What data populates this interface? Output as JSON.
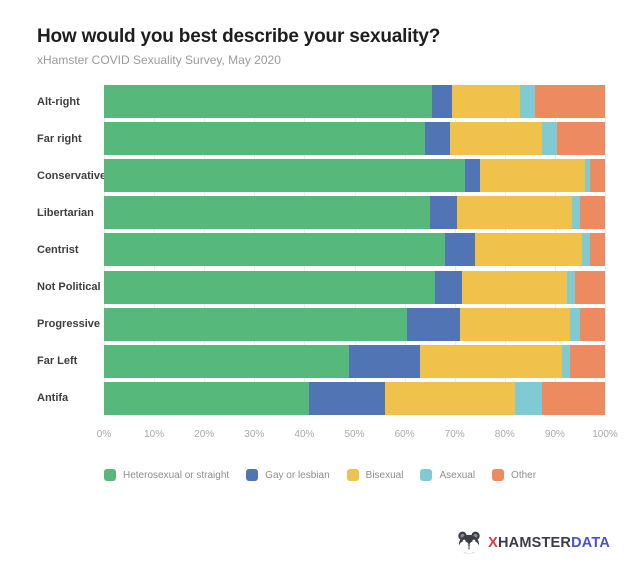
{
  "header": {
    "title": "How would you best describe your sexuality?",
    "subtitle": "xHamster COVID Sexuality Survey, May 2020"
  },
  "chart_data": {
    "type": "bar",
    "orientation": "horizontal",
    "stacked": true,
    "title": "How would you best describe your sexuality?",
    "subtitle": "xHamster COVID Sexuality Survey, May 2020",
    "unit": "percent",
    "categories": [
      "Alt-right",
      "Far right",
      "Conservative",
      "Libertarian",
      "Centrist",
      "Not Political",
      "Progressive",
      "Far Left",
      "Antifa"
    ],
    "series": [
      {
        "name": "Heterosexual or straight",
        "color": "#57B87B",
        "values": [
          65.5,
          64,
          72,
          65,
          68,
          66,
          60.5,
          49,
          41
        ]
      },
      {
        "name": "Gay or lesbian",
        "color": "#5174B5",
        "values": [
          4,
          5,
          3,
          5.5,
          6,
          5.5,
          10.5,
          14,
          15
        ]
      },
      {
        "name": "Bisexual",
        "color": "#F0C14B",
        "values": [
          13.5,
          18.5,
          21,
          23,
          21.5,
          21,
          22,
          28.5,
          26
        ]
      },
      {
        "name": "Asexual",
        "color": "#80CBD1",
        "values": [
          3,
          3,
          1,
          1.5,
          1.5,
          1.5,
          2,
          1.5,
          5.5
        ]
      },
      {
        "name": "Other",
        "color": "#EE8A5F",
        "values": [
          14,
          9.5,
          3,
          5,
          3,
          6,
          5,
          7,
          12.5
        ]
      }
    ],
    "x_ticks": [
      "0%",
      "10%",
      "20%",
      "30%",
      "40%",
      "50%",
      "60%",
      "70%",
      "80%",
      "90%",
      "100%"
    ],
    "xlim": [
      0,
      100
    ],
    "grid": true,
    "legend_position": "bottom"
  },
  "logo": {
    "x": "X",
    "brand": "HAMSTER",
    "suffix": "DATA"
  },
  "colors": {
    "background": "#FFFFFF",
    "gridline": "#EDEDED",
    "title_text": "#1E1E1E",
    "subtitle_text": "#9A9A9A",
    "category_text": "#3E3E3E",
    "tick_text": "#A9A9A9",
    "legend_text": "#8E8E8E",
    "logo_x": "#E23A3F",
    "logo_brand": "#3C3C46",
    "logo_suffix": "#4A52CC"
  }
}
